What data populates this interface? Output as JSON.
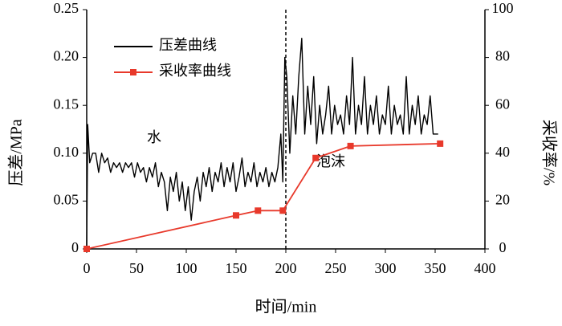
{
  "chart_data": {
    "type": "line",
    "xlabel": "时间/min",
    "ylabel": "压差/MPa",
    "y2label": "采收率/%",
    "annotations": [
      "水",
      "泡沫"
    ],
    "xlim": [
      0,
      400
    ],
    "xticks": [
      0,
      50,
      100,
      150,
      200,
      250,
      300,
      350,
      400
    ],
    "ylim": [
      0,
      0.25
    ],
    "yticks": [
      0,
      0.05,
      {
        "value": 0.1,
        "label": "0.10"
      },
      0.15,
      {
        "value": 0.2,
        "label": "0.20"
      },
      0.25
    ],
    "y2lim": [
      0,
      100
    ],
    "y2ticks": [
      0,
      20,
      40,
      60,
      80,
      100
    ],
    "grid": false,
    "legend": "upper left",
    "series": [
      {
        "name": "压差曲线",
        "color": "#000000",
        "marker": "none",
        "x": [
          0,
          1,
          3,
          6,
          9,
          12,
          15,
          18,
          21,
          24,
          27,
          30,
          33,
          36,
          39,
          42,
          45,
          48,
          51,
          54,
          57,
          60,
          63,
          66,
          69,
          72,
          75,
          78,
          81,
          84,
          87,
          90,
          93,
          96,
          99,
          102,
          105,
          108,
          111,
          114,
          117,
          120,
          123,
          126,
          129,
          132,
          135,
          138,
          141,
          144,
          147,
          150,
          153,
          156,
          159,
          162,
          165,
          168,
          171,
          174,
          177,
          180,
          183,
          186,
          189,
          192,
          195,
          197,
          199,
          201,
          204,
          207,
          210,
          213,
          216,
          219,
          222,
          225,
          228,
          231,
          234,
          237,
          240,
          243,
          246,
          249,
          252,
          255,
          258,
          261,
          264,
          267,
          270,
          273,
          276,
          279,
          282,
          285,
          288,
          291,
          294,
          297,
          300,
          303,
          306,
          309,
          312,
          315,
          318,
          321,
          324,
          327,
          330,
          333,
          336,
          339,
          342,
          345,
          348,
          351,
          353
        ],
        "values": [
          0,
          0.13,
          0.09,
          0.1,
          0.1,
          0.08,
          0.1,
          0.09,
          0.095,
          0.08,
          0.09,
          0.085,
          0.09,
          0.08,
          0.09,
          0.085,
          0.09,
          0.075,
          0.09,
          0.08,
          0.085,
          0.07,
          0.085,
          0.075,
          0.09,
          0.065,
          0.08,
          0.07,
          0.04,
          0.075,
          0.06,
          0.08,
          0.05,
          0.07,
          0.04,
          0.065,
          0.03,
          0.06,
          0.075,
          0.05,
          0.08,
          0.065,
          0.085,
          0.06,
          0.08,
          0.07,
          0.09,
          0.065,
          0.085,
          0.07,
          0.09,
          0.06,
          0.075,
          0.095,
          0.065,
          0.08,
          0.07,
          0.09,
          0.065,
          0.08,
          0.07,
          0.085,
          0.065,
          0.08,
          0.07,
          0.085,
          0.12,
          0.07,
          0.2,
          0.18,
          0.1,
          0.16,
          0.12,
          0.18,
          0.22,
          0.12,
          0.17,
          0.13,
          0.18,
          0.11,
          0.15,
          0.12,
          0.14,
          0.17,
          0.12,
          0.15,
          0.13,
          0.14,
          0.12,
          0.16,
          0.13,
          0.2,
          0.12,
          0.15,
          0.13,
          0.18,
          0.12,
          0.15,
          0.13,
          0.16,
          0.12,
          0.14,
          0.13,
          0.17,
          0.12,
          0.15,
          0.13,
          0.14,
          0.12,
          0.18,
          0.12,
          0.15,
          0.13,
          0.16,
          0.12,
          0.14,
          0.13,
          0.16,
          0.12,
          0.12,
          0.12
        ]
      },
      {
        "name": "采收率曲线",
        "color": "#e8392b",
        "marker": "square",
        "axis": "y2",
        "x": [
          0,
          150,
          172,
          197,
          230,
          265,
          355
        ],
        "values": [
          0,
          14,
          16,
          16,
          38,
          43,
          44
        ]
      }
    ]
  }
}
